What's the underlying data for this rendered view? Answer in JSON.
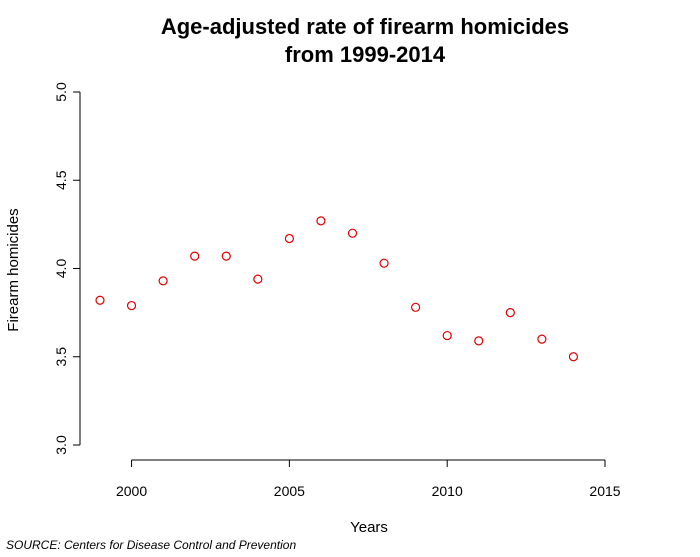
{
  "chart_data": {
    "type": "scatter",
    "title_lines": [
      "Age-adjusted rate of firearm homicides",
      "from 1999-2014"
    ],
    "xlabel": "Years",
    "ylabel": "Firearm homicides",
    "xlim": [
      1999,
      2015
    ],
    "ylim": [
      3.0,
      5.0
    ],
    "x_ticks": [
      2000,
      2005,
      2010,
      2015
    ],
    "y_ticks": [
      "3.0",
      "3.5",
      "4.0",
      "4.5",
      "5.0"
    ],
    "point_color": "#dd0000",
    "grid": false,
    "series": [
      {
        "x": [
          1999,
          2000,
          2001,
          2002,
          2003,
          2004,
          2005,
          2006,
          2007,
          2008,
          2009,
          2010,
          2011,
          2012,
          2013,
          2014
        ],
        "y": [
          3.82,
          3.79,
          3.93,
          4.07,
          4.07,
          3.94,
          4.17,
          4.27,
          4.2,
          4.03,
          3.78,
          3.62,
          3.59,
          3.75,
          3.6,
          3.5
        ]
      }
    ]
  },
  "source": "SOURCE: Centers for Disease Control and Prevention"
}
